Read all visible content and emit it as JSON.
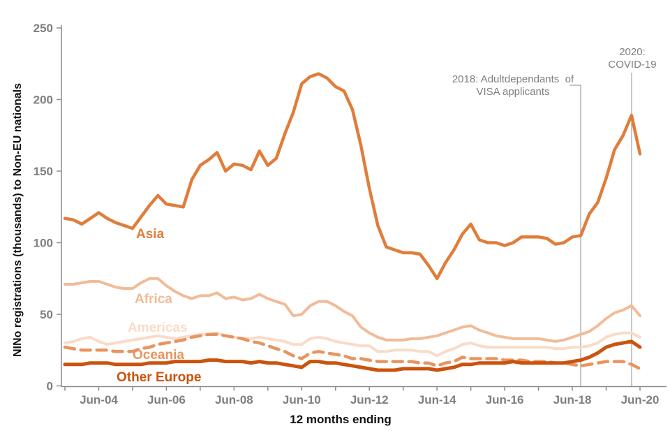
{
  "chart_data": {
    "type": "line",
    "title": "",
    "xlabel": "12 months ending",
    "ylabel": "NINo registrations (thousands) to Non-EU nationals",
    "ylim": [
      0,
      250
    ],
    "yticks": [
      0,
      50,
      100,
      150,
      200,
      250
    ],
    "grid": "off",
    "legend_position": "inline-labels-on-chart",
    "x_major_tick_labels": [
      "Jun-04",
      "Jun-06",
      "Jun-08",
      "Jun-10",
      "Jun-12",
      "Jun-14",
      "Jun-16",
      "Jun-18",
      "Jun-20"
    ],
    "x_minor_ticks": "yearly from Jun-03 to Jun-20",
    "x": [
      "Jun-03",
      "Sep-03",
      "Dec-03",
      "Mar-04",
      "Jun-04",
      "Sep-04",
      "Dec-04",
      "Mar-05",
      "Jun-05",
      "Sep-05",
      "Dec-05",
      "Mar-06",
      "Jun-06",
      "Sep-06",
      "Dec-06",
      "Mar-07",
      "Jun-07",
      "Sep-07",
      "Dec-07",
      "Mar-08",
      "Jun-08",
      "Sep-08",
      "Dec-08",
      "Mar-09",
      "Jun-09",
      "Sep-09",
      "Dec-09",
      "Mar-10",
      "Jun-10",
      "Sep-10",
      "Dec-10",
      "Mar-11",
      "Jun-11",
      "Sep-11",
      "Dec-11",
      "Mar-12",
      "Jun-12",
      "Sep-12",
      "Dec-12",
      "Mar-13",
      "Jun-13",
      "Sep-13",
      "Dec-13",
      "Mar-14",
      "Jun-14",
      "Sep-14",
      "Dec-14",
      "Mar-15",
      "Jun-15",
      "Sep-15",
      "Dec-15",
      "Mar-16",
      "Jun-16",
      "Sep-16",
      "Dec-16",
      "Mar-17",
      "Jun-17",
      "Sep-17",
      "Dec-17",
      "Mar-18",
      "Jun-18",
      "Sep-18",
      "Dec-18",
      "Mar-19",
      "Jun-19",
      "Sep-19",
      "Dec-19",
      "Mar-20",
      "Jun-20"
    ],
    "series": [
      {
        "name": "Asia",
        "color": "#e07d3b",
        "style": "solid",
        "width": 4.5,
        "values": [
          117,
          116,
          113,
          117,
          121,
          117,
          114,
          112,
          110,
          118,
          126,
          133,
          127,
          126,
          125,
          144,
          154,
          158,
          163,
          150,
          155,
          154,
          151,
          164,
          154,
          159,
          176,
          191,
          211,
          216,
          218,
          215,
          209,
          206,
          193,
          168,
          138,
          112,
          97,
          95,
          93,
          93,
          92,
          84,
          75,
          86,
          95,
          106,
          113,
          102,
          100,
          100,
          98,
          100,
          104,
          104,
          104,
          103,
          99,
          100,
          104,
          105,
          120,
          128,
          145,
          165,
          175,
          189,
          162
        ]
      },
      {
        "name": "Africa",
        "color": "#f2bb98",
        "style": "solid",
        "width": 4,
        "values": [
          71,
          71,
          72,
          73,
          73,
          71,
          69,
          68,
          68,
          72,
          75,
          75,
          70,
          66,
          63,
          61,
          63,
          63,
          65,
          61,
          62,
          60,
          61,
          64,
          61,
          59,
          57,
          49,
          50,
          56,
          59,
          59,
          56,
          52,
          49,
          41,
          37,
          34,
          32,
          32,
          32,
          33,
          33,
          34,
          35,
          37,
          39,
          41,
          42,
          39,
          37,
          35,
          34,
          33,
          33,
          33,
          33,
          32,
          31,
          32,
          34,
          36,
          38,
          42,
          47,
          51,
          53,
          56,
          49
        ]
      },
      {
        "name": "Americas",
        "color": "#f9dbc8",
        "style": "solid",
        "width": 4,
        "values": [
          30,
          31,
          33,
          34,
          31,
          29,
          30,
          31,
          32,
          33,
          34,
          35,
          34,
          33,
          34,
          35,
          36,
          36,
          37,
          35,
          34,
          33,
          33,
          34,
          33,
          32,
          31,
          29,
          29,
          33,
          34,
          33,
          31,
          30,
          29,
          28,
          28,
          24,
          24,
          25,
          25,
          25,
          24,
          24,
          21,
          24,
          26,
          29,
          30,
          28,
          27,
          27,
          27,
          27,
          27,
          27,
          27,
          27,
          26,
          26,
          27,
          27,
          28,
          30,
          34,
          36,
          37,
          37,
          34
        ]
      },
      {
        "name": "Oceania",
        "color": "#e9945f",
        "style": "dashed",
        "width": 4.5,
        "values": [
          27,
          26,
          25,
          25,
          25,
          25,
          24,
          24,
          24,
          26,
          27,
          29,
          30,
          31,
          32,
          34,
          35,
          36,
          36,
          35,
          34,
          33,
          31,
          30,
          28,
          26,
          24,
          21,
          19,
          23,
          24,
          23,
          22,
          21,
          19,
          19,
          18,
          17,
          17,
          17,
          17,
          17,
          16,
          16,
          14,
          16,
          17,
          20,
          19,
          19,
          19,
          19,
          18,
          18,
          18,
          17,
          17,
          17,
          16,
          16,
          15,
          14,
          15,
          16,
          17,
          17,
          17,
          15,
          12
        ]
      },
      {
        "name": "Other Europe",
        "color": "#cb530e",
        "style": "solid",
        "width": 5,
        "values": [
          15,
          15,
          15,
          16,
          16,
          16,
          15,
          15,
          15,
          15,
          16,
          16,
          16,
          17,
          17,
          17,
          17,
          18,
          18,
          17,
          17,
          17,
          16,
          17,
          16,
          16,
          15,
          14,
          13,
          17,
          17,
          16,
          16,
          15,
          14,
          13,
          12,
          11,
          11,
          11,
          12,
          12,
          12,
          12,
          11,
          12,
          13,
          15,
          15,
          16,
          16,
          16,
          16,
          17,
          16,
          16,
          16,
          16,
          16,
          16,
          17,
          18,
          20,
          23,
          27,
          29,
          30,
          31,
          27
        ]
      }
    ],
    "annotations": [
      {
        "label_lines": [
          "2018: Adultdependants  of",
          "VISA applicants"
        ],
        "x_label": "Sep-18",
        "line_top_value": 210
      },
      {
        "label_lines": [
          "2020:",
          "COVID-19"
        ],
        "x_label": "Mar-20",
        "line_top_value": 219
      }
    ]
  }
}
